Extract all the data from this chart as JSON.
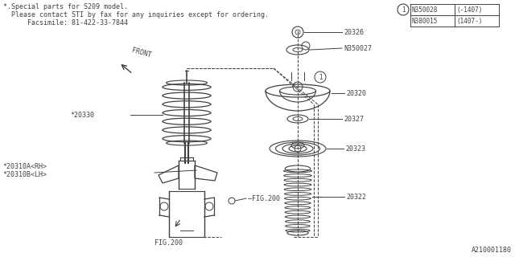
{
  "title_line1": "*.Special parts for S209 model.",
  "title_line2": "  Please contact STI by fax for any inquiries except for ordering.",
  "title_line3": "      Facsimile: 81-422-33-7844",
  "footer": "A210001180",
  "bg_color": "#ffffff",
  "line_color": "#404040",
  "table_rows": [
    {
      "part": "N350028",
      "range": "(-1407)"
    },
    {
      "part": "N380015",
      "range": "(1407-)"
    }
  ]
}
